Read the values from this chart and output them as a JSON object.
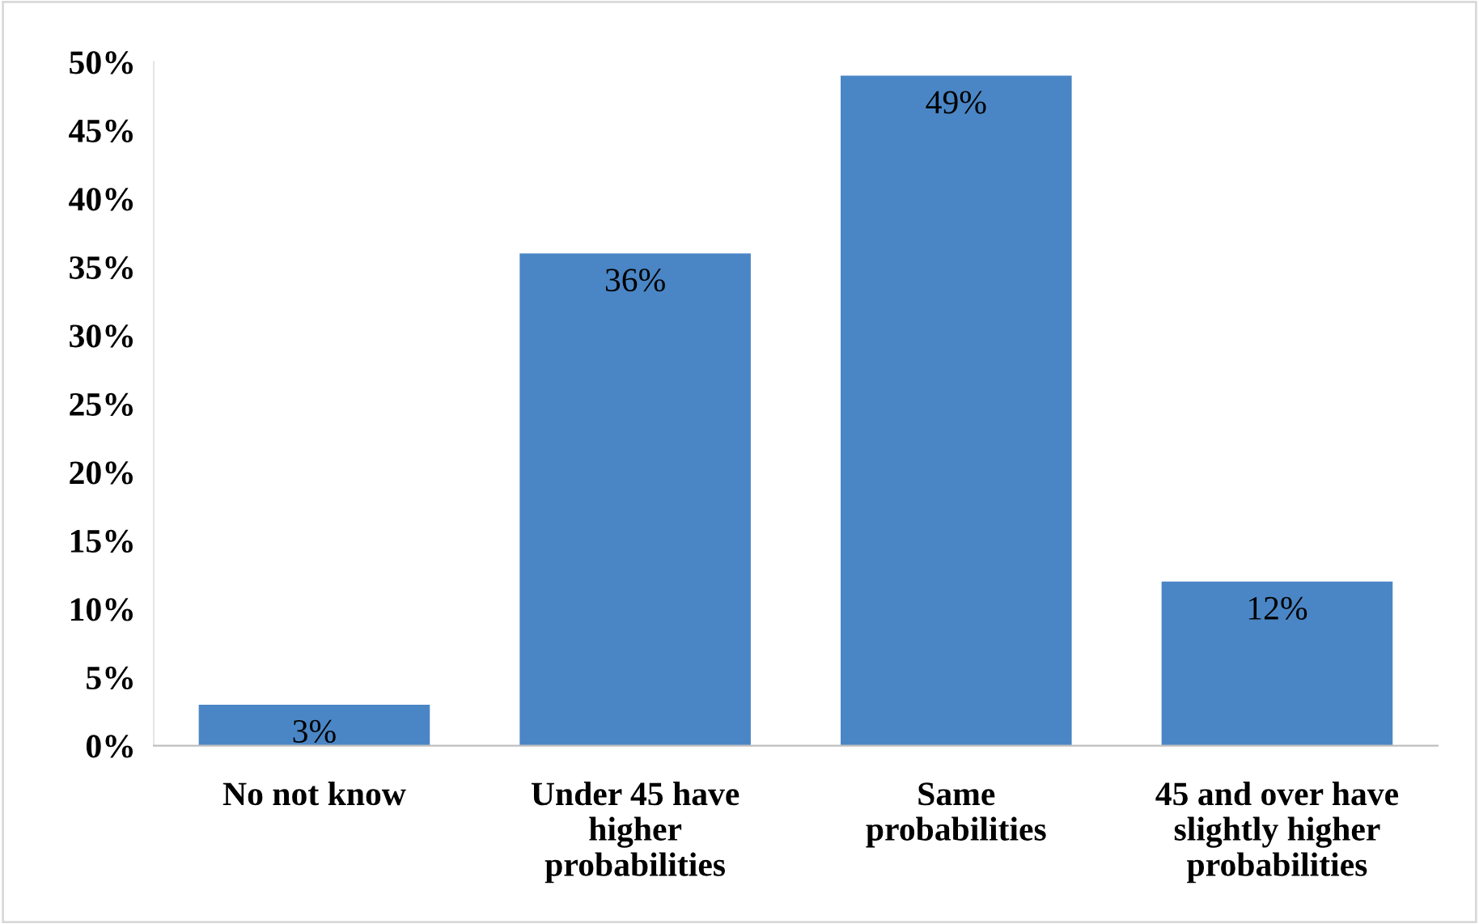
{
  "chart_data": {
    "type": "bar",
    "categories": [
      "No not know",
      "Under 45 have\nhigher\nprobabilities",
      "Same\nprobabilities",
      "45 and over have\nslightly higher\nprobabilities"
    ],
    "values": [
      3,
      36,
      49,
      12
    ],
    "value_labels": [
      "3%",
      "36%",
      "49%",
      "12%"
    ],
    "color": "#4a86c5",
    "ylim": [
      0,
      50
    ],
    "yticks": [
      {
        "value": 0,
        "label": "0%"
      },
      {
        "value": 5,
        "label": "5%"
      },
      {
        "value": 10,
        "label": "10%"
      },
      {
        "value": 15,
        "label": "15%"
      },
      {
        "value": 20,
        "label": "20%"
      },
      {
        "value": 25,
        "label": "25%"
      },
      {
        "value": 30,
        "label": "30%"
      },
      {
        "value": 35,
        "label": "35%"
      },
      {
        "value": 40,
        "label": "40%"
      },
      {
        "value": 45,
        "label": "45%"
      },
      {
        "value": 50,
        "label": "50%"
      }
    ],
    "grid": false,
    "legend": false
  }
}
